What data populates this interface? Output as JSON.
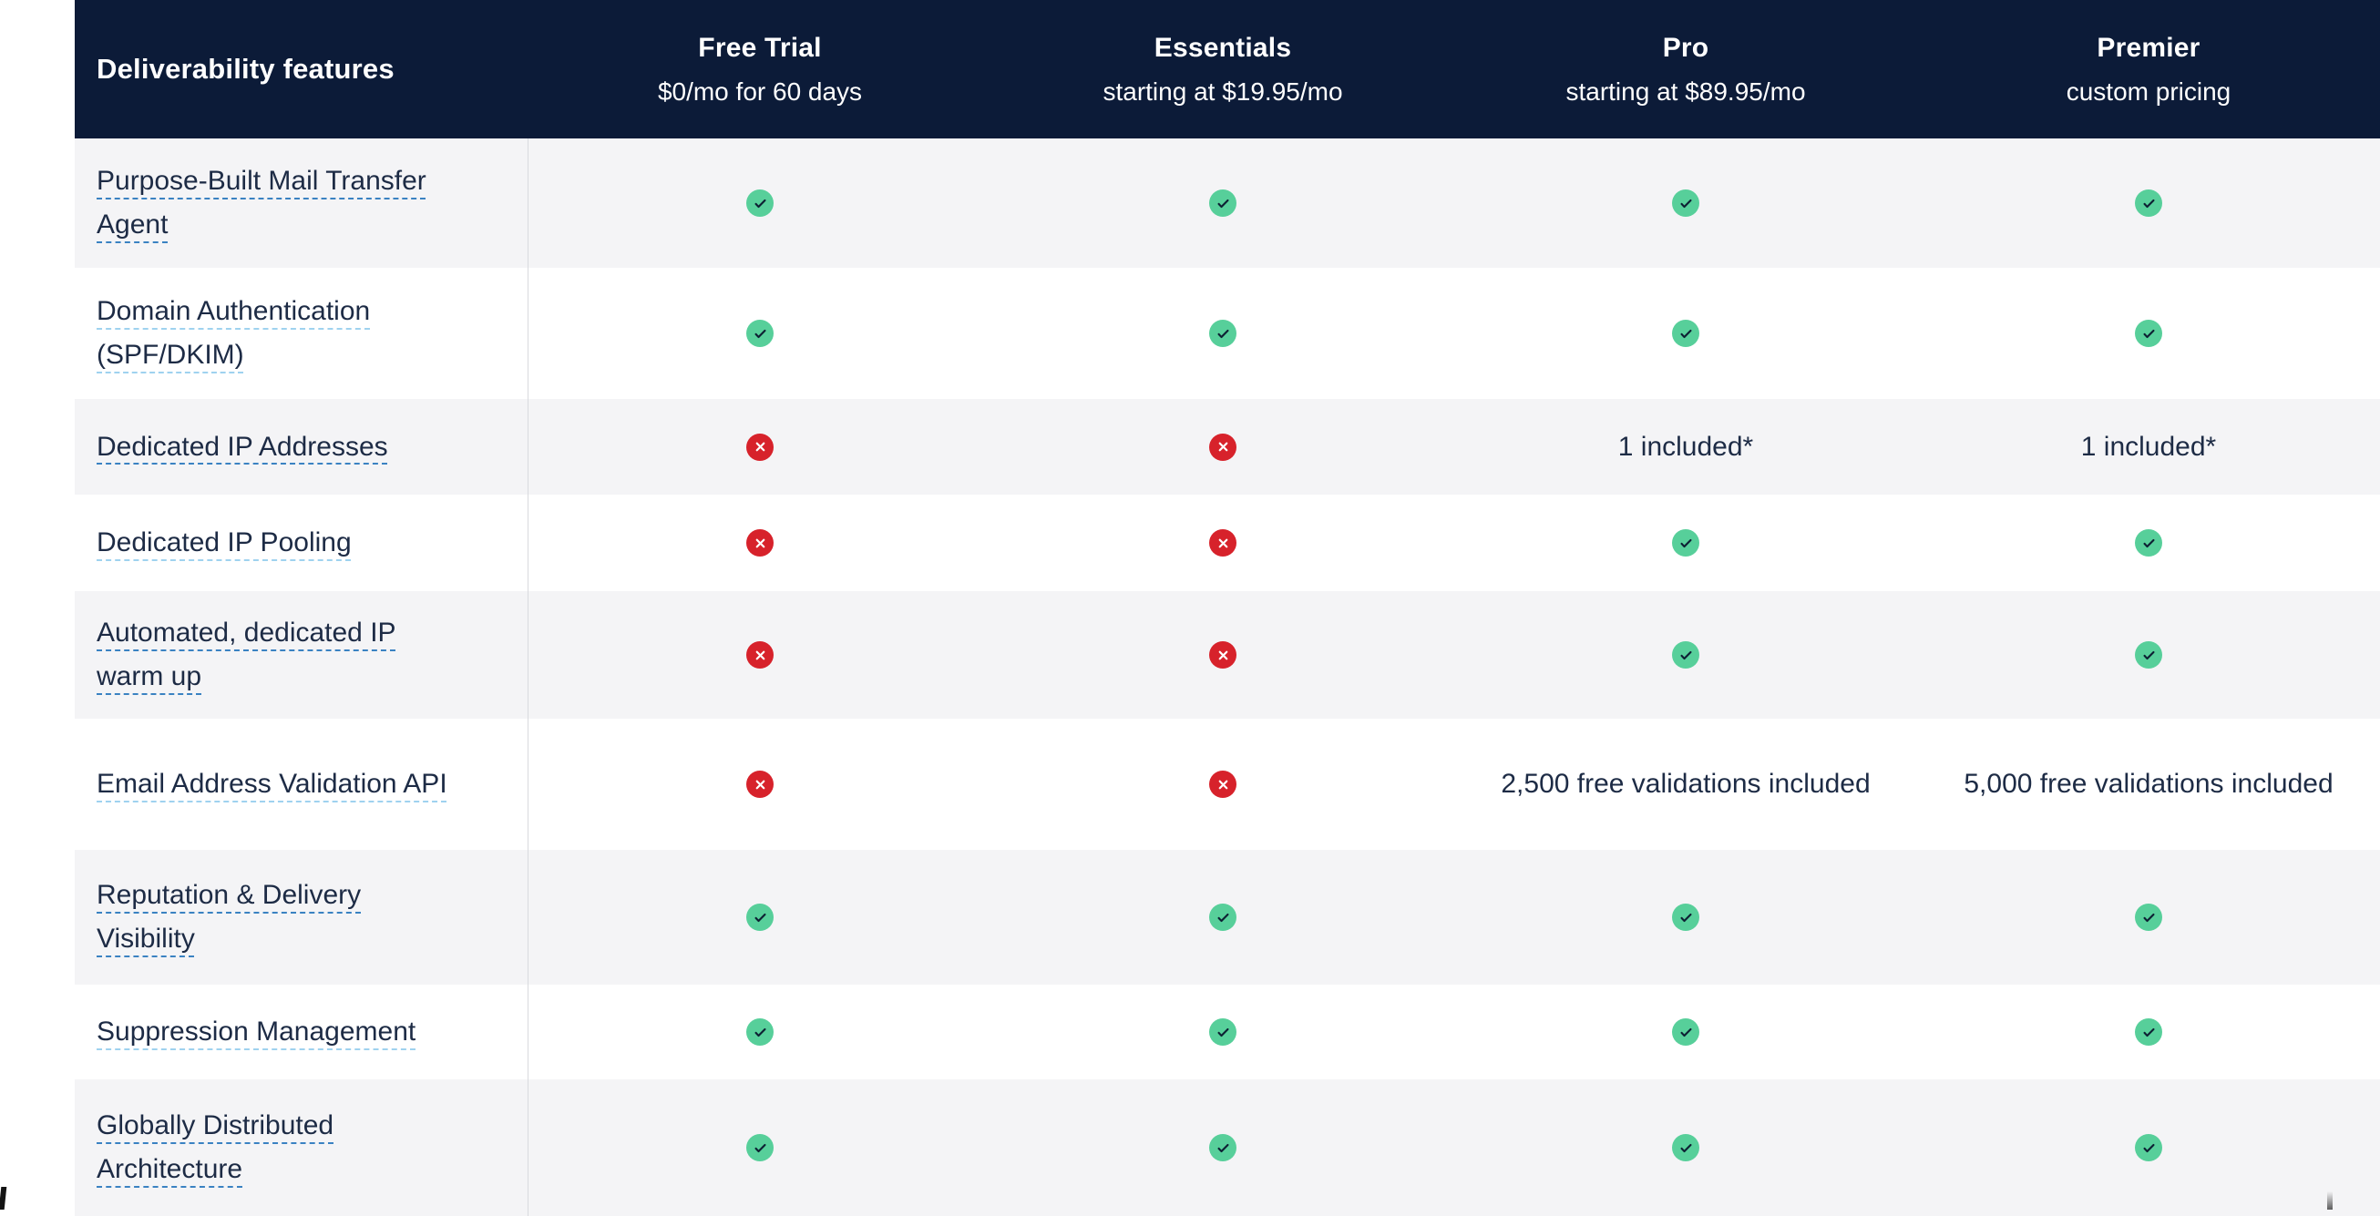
{
  "header": {
    "feature_column_title": "Deliverability features",
    "plans": [
      {
        "name": "Free Trial",
        "price": "$0/mo for 60 days"
      },
      {
        "name": "Essentials",
        "price": "starting at $19.95/mo"
      },
      {
        "name": "Pro",
        "price": "starting at $89.95/mo"
      },
      {
        "name": "Premier",
        "price": "custom pricing"
      }
    ]
  },
  "rows": [
    {
      "feature": "Purpose-Built Mail Transfer Agent",
      "values": [
        "check",
        "check",
        "check",
        "check"
      ]
    },
    {
      "feature": "Domain Authentication (SPF/DKIM)",
      "values": [
        "check",
        "check",
        "check",
        "check"
      ]
    },
    {
      "feature": "Dedicated IP Addresses",
      "values": [
        "cross",
        "cross",
        "1 included*",
        "1 included*"
      ]
    },
    {
      "feature": "Dedicated IP Pooling",
      "values": [
        "cross",
        "cross",
        "check",
        "check"
      ]
    },
    {
      "feature": "Automated, dedicated IP warm up",
      "values": [
        "cross",
        "cross",
        "check",
        "check"
      ]
    },
    {
      "feature": "Email Address Validation API",
      "values": [
        "cross",
        "cross",
        "2,500 free validations included",
        "5,000 free validations included"
      ]
    },
    {
      "feature": "Reputation & Delivery Visibility",
      "values": [
        "check",
        "check",
        "check",
        "check"
      ]
    },
    {
      "feature": "Suppression Management",
      "values": [
        "check",
        "check",
        "check",
        "check"
      ]
    },
    {
      "feature": "Globally Distributed Architecture",
      "values": [
        "check",
        "check",
        "check",
        "check"
      ]
    }
  ],
  "icons": {
    "check": "check-icon",
    "cross": "x-icon"
  },
  "colors": {
    "header_bg": "#0c1b38",
    "row_alt_bg": "#f4f4f6",
    "text": "#1d2b45",
    "link_dash_dark": "#3a82c2",
    "link_dash_light": "#9fd2ef",
    "check_green": "#57cf9a",
    "cross_red": "#d7222b",
    "divider": "#d9dade"
  }
}
